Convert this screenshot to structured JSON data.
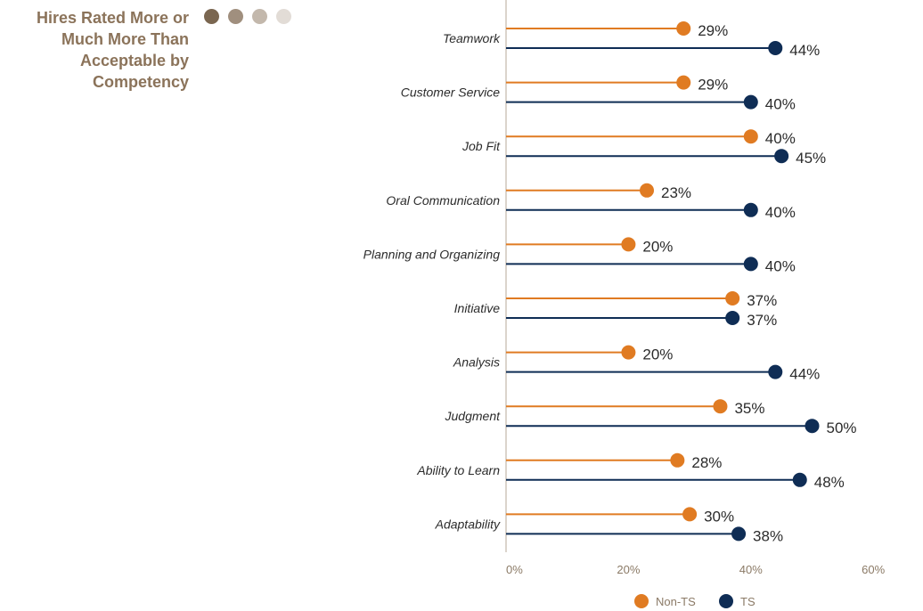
{
  "header": {
    "title_lines": [
      "Hires Rated More or",
      "Much More Than",
      "Acceptable by",
      "Competency"
    ],
    "dot_colors": [
      "#7a6650",
      "#a08f7e",
      "#c3b8ac",
      "#e2dcd6"
    ]
  },
  "colors": {
    "non_ts": "#e07b22",
    "ts": "#0f2d55",
    "axis": "#b7a899"
  },
  "chart_data": {
    "type": "dot",
    "categories": [
      "Teamwork",
      "Customer Service",
      "Job Fit",
      "Oral Communication",
      "Planning and Organizing",
      "Initiative",
      "Analysis",
      "Judgment",
      "Ability to Learn",
      "Adaptability"
    ],
    "series": [
      {
        "name": "Non-TS",
        "color": "#e07b22",
        "values": [
          29,
          29,
          40,
          23,
          20,
          37,
          20,
          35,
          28,
          30
        ]
      },
      {
        "name": "TS",
        "color": "#0f2d55",
        "values": [
          44,
          40,
          45,
          40,
          40,
          37,
          44,
          50,
          48,
          38
        ]
      }
    ],
    "xlim": [
      0,
      60
    ],
    "xticks": [
      0,
      20,
      40,
      60
    ],
    "tick_suffix": "%",
    "value_suffix": "%",
    "legend": "bottom",
    "title": "Hires Rated More or Much More Than Acceptable by Competency"
  }
}
